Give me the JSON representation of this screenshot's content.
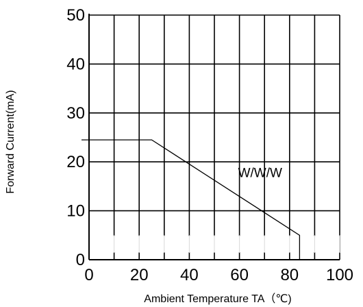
{
  "chart_data": {
    "type": "line",
    "xlabel": "Ambient Temperature TA（℃)",
    "ylabel": "Forward Current(mA)",
    "xlim": [
      0,
      100
    ],
    "ylim": [
      0,
      50
    ],
    "x_ticks": [
      "0",
      "20",
      "40",
      "60",
      "80",
      "100"
    ],
    "y_ticks": [
      "0",
      "10",
      "20",
      "30",
      "40",
      "50"
    ],
    "grid": true,
    "series": [
      {
        "x": [
          -3,
          25,
          84,
          84
        ],
        "y": [
          24.5,
          24.5,
          5,
          0
        ]
      }
    ],
    "annotations": [
      {
        "text": "W/W/W",
        "x": 60,
        "y": 18
      }
    ],
    "colors": {
      "line": "#000000",
      "grid": "#000000",
      "background": "#ffffff"
    }
  }
}
